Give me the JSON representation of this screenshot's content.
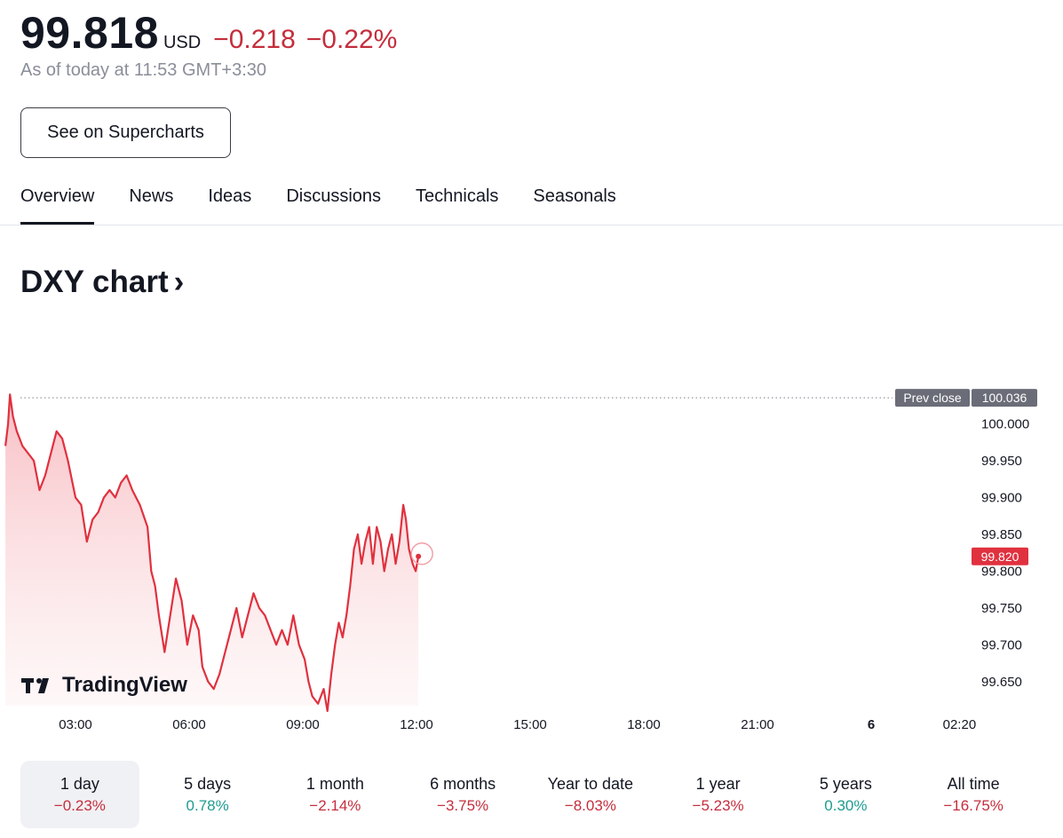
{
  "quote": {
    "price": "99.818",
    "currency": "USD",
    "change": "−0.218",
    "change_pct": "−0.22%",
    "as_of": "As of today at 11:53 GMT+3:30"
  },
  "actions": {
    "supercharts_label": "See on Supercharts"
  },
  "tabs": [
    {
      "label": "Overview",
      "active": true
    },
    {
      "label": "News",
      "active": false
    },
    {
      "label": "Ideas",
      "active": false
    },
    {
      "label": "Discussions",
      "active": false
    },
    {
      "label": "Technicals",
      "active": false
    },
    {
      "label": "Seasonals",
      "active": false
    }
  ],
  "chart_section": {
    "title": "DXY chart",
    "chevron": "›"
  },
  "watermark": {
    "brand": "TradingView"
  },
  "chart_data": {
    "type": "area",
    "line_color": "#e0313f",
    "fill_color": "#f7c9cd",
    "y_ticks": [
      "100.000",
      "99.950",
      "99.900",
      "99.850",
      "99.800",
      "99.750",
      "99.700",
      "99.650"
    ],
    "y_tick_values": [
      100.0,
      99.95,
      99.9,
      99.85,
      99.8,
      99.75,
      99.7,
      99.65
    ],
    "ylim": [
      99.61,
      100.05
    ],
    "x_ticks": [
      "03:00",
      "06:00",
      "09:00",
      "12:00",
      "15:00",
      "18:00",
      "21:00",
      "6",
      "02:20"
    ],
    "x_tick_hours": [
      3,
      6,
      9,
      12,
      15,
      18,
      21,
      24,
      26.33
    ],
    "xlim_hours": [
      1.15,
      26.6
    ],
    "prev_close": {
      "label": "Prev close",
      "value": 100.036,
      "value_label": "100.036"
    },
    "last": {
      "value": 99.82,
      "label": "99.820"
    },
    "series": [
      {
        "points": [
          [
            1.15,
            99.97
          ],
          [
            1.22,
            100.0
          ],
          [
            1.27,
            100.04
          ],
          [
            1.35,
            100.01
          ],
          [
            1.45,
            99.99
          ],
          [
            1.6,
            99.97
          ],
          [
            1.75,
            99.96
          ],
          [
            1.9,
            99.95
          ],
          [
            2.05,
            99.91
          ],
          [
            2.2,
            99.93
          ],
          [
            2.35,
            99.96
          ],
          [
            2.5,
            99.99
          ],
          [
            2.65,
            99.98
          ],
          [
            2.8,
            99.95
          ],
          [
            3.0,
            99.9
          ],
          [
            3.15,
            99.89
          ],
          [
            3.3,
            99.84
          ],
          [
            3.45,
            99.87
          ],
          [
            3.6,
            99.88
          ],
          [
            3.75,
            99.9
          ],
          [
            3.9,
            99.91
          ],
          [
            4.05,
            99.9
          ],
          [
            4.2,
            99.92
          ],
          [
            4.35,
            99.93
          ],
          [
            4.5,
            99.91
          ],
          [
            4.7,
            99.89
          ],
          [
            4.9,
            99.86
          ],
          [
            5.0,
            99.8
          ],
          [
            5.1,
            99.78
          ],
          [
            5.2,
            99.74
          ],
          [
            5.35,
            99.69
          ],
          [
            5.5,
            99.74
          ],
          [
            5.65,
            99.79
          ],
          [
            5.8,
            99.76
          ],
          [
            5.95,
            99.7
          ],
          [
            6.1,
            99.74
          ],
          [
            6.25,
            99.72
          ],
          [
            6.35,
            99.67
          ],
          [
            6.5,
            99.65
          ],
          [
            6.65,
            99.64
          ],
          [
            6.8,
            99.66
          ],
          [
            6.95,
            99.69
          ],
          [
            7.1,
            99.72
          ],
          [
            7.25,
            99.75
          ],
          [
            7.4,
            99.71
          ],
          [
            7.55,
            99.74
          ],
          [
            7.7,
            99.77
          ],
          [
            7.85,
            99.75
          ],
          [
            8.0,
            99.74
          ],
          [
            8.15,
            99.72
          ],
          [
            8.3,
            99.7
          ],
          [
            8.45,
            99.72
          ],
          [
            8.6,
            99.7
          ],
          [
            8.75,
            99.74
          ],
          [
            8.9,
            99.7
          ],
          [
            9.05,
            99.68
          ],
          [
            9.15,
            99.65
          ],
          [
            9.25,
            99.63
          ],
          [
            9.4,
            99.62
          ],
          [
            9.55,
            99.64
          ],
          [
            9.65,
            99.61
          ],
          [
            9.75,
            99.66
          ],
          [
            9.85,
            99.7
          ],
          [
            9.95,
            99.73
          ],
          [
            10.05,
            99.71
          ],
          [
            10.15,
            99.74
          ],
          [
            10.25,
            99.78
          ],
          [
            10.35,
            99.83
          ],
          [
            10.45,
            99.85
          ],
          [
            10.55,
            99.81
          ],
          [
            10.65,
            99.84
          ],
          [
            10.75,
            99.86
          ],
          [
            10.85,
            99.81
          ],
          [
            10.95,
            99.86
          ],
          [
            11.05,
            99.84
          ],
          [
            11.15,
            99.8
          ],
          [
            11.25,
            99.83
          ],
          [
            11.35,
            99.85
          ],
          [
            11.45,
            99.81
          ],
          [
            11.55,
            99.84
          ],
          [
            11.65,
            99.89
          ],
          [
            11.72,
            99.87
          ],
          [
            11.8,
            99.83
          ],
          [
            11.9,
            99.81
          ],
          [
            11.98,
            99.8
          ],
          [
            12.05,
            99.82
          ]
        ]
      }
    ]
  },
  "periods": [
    {
      "label": "1 day",
      "value": "−0.23%",
      "trend": "neg",
      "active": true
    },
    {
      "label": "5 days",
      "value": "0.78%",
      "trend": "pos",
      "active": false
    },
    {
      "label": "1 month",
      "value": "−2.14%",
      "trend": "neg",
      "active": false
    },
    {
      "label": "6 months",
      "value": "−3.75%",
      "trend": "neg",
      "active": false
    },
    {
      "label": "Year to date",
      "value": "−8.03%",
      "trend": "neg",
      "active": false
    },
    {
      "label": "1 year",
      "value": "−5.23%",
      "trend": "neg",
      "active": false
    },
    {
      "label": "5 years",
      "value": "0.30%",
      "trend": "pos",
      "active": false
    },
    {
      "label": "All time",
      "value": "−16.75%",
      "trend": "neg",
      "active": false
    }
  ]
}
